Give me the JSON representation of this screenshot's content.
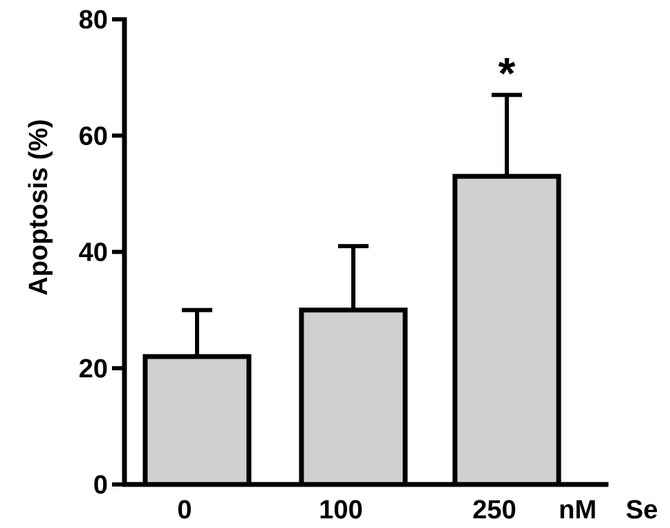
{
  "chart_data": {
    "type": "bar",
    "categories": [
      "0",
      "100",
      "250"
    ],
    "values": [
      22,
      30,
      53
    ],
    "error_upper": [
      30,
      41,
      67
    ],
    "ylabel": "Apoptosis (%)",
    "xlabel": "nM   Se",
    "x_unit": "nM",
    "x_substance": "Se",
    "ylim": [
      0,
      80
    ],
    "yticks": [
      0,
      20,
      40,
      60,
      80
    ],
    "annotations": [
      {
        "category": "250",
        "text": "*"
      }
    ],
    "grid": false,
    "legend": "none",
    "bar_color": "#d0d0d0",
    "line_color": "#000000"
  }
}
